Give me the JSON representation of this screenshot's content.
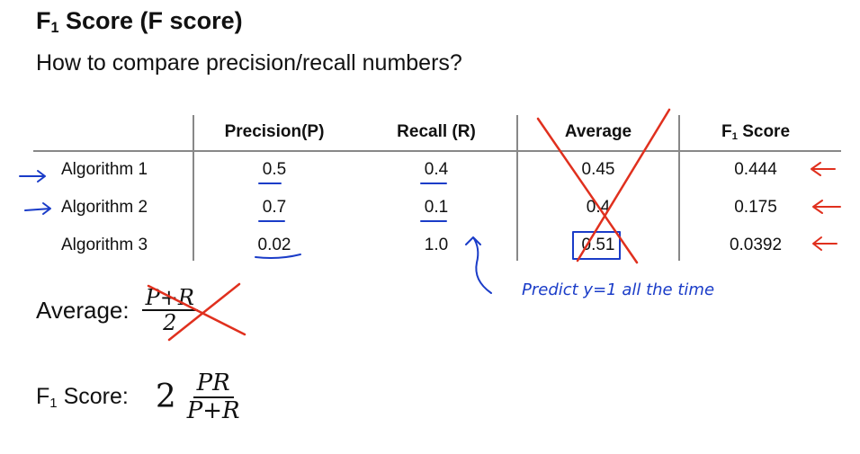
{
  "title": {
    "main": "F",
    "sub": "1",
    "rest": " Score (F score)"
  },
  "subtitle": "How to compare precision/recall numbers?",
  "table": {
    "headers": [
      "Precision(P)",
      "Recall (R)",
      "Average",
      "F",
      "1",
      " Score"
    ],
    "rows": [
      {
        "label": "Algorithm 1",
        "precision": "0.5",
        "recall": "0.4",
        "average": "0.45",
        "f1": "0.444"
      },
      {
        "label": "Algorithm 2",
        "precision": "0.7",
        "recall": "0.1",
        "average": "0.4",
        "f1": "0.175"
      },
      {
        "label": "Algorithm 3",
        "precision": "0.02",
        "recall": "1.0",
        "average": "0.51",
        "f1": "0.0392"
      }
    ]
  },
  "average_formula": {
    "label": "Average:",
    "numerator": "P+R",
    "denominator": "2"
  },
  "f1_formula": {
    "label_main": "F",
    "label_sub": "1",
    "label_rest": " Score:",
    "coef": "2",
    "numerator": "PR",
    "denominator": "P+R"
  },
  "annotation": "Predict y=1 all the time",
  "colors": {
    "ink_blue": "#1a3cc8",
    "ink_red": "#e0301e"
  }
}
